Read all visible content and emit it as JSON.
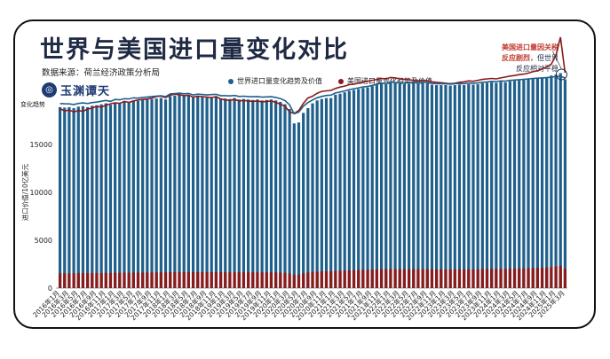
{
  "title": "世界与美国进口量变化对比",
  "source": "数据来源：荷兰经济政策分析局",
  "logo": {
    "text": "玉渊谭天"
  },
  "annotation": {
    "line1": "美国进口量因关税",
    "line2_red": "反应剧烈",
    "line2_rest": "，但世界",
    "line3": "反应相对平稳"
  },
  "legend": [
    {
      "label": "世界进口量变化趋势及价值",
      "color": "#1f5f8b"
    },
    {
      "label": "美国进口量变化趋势及价值",
      "color": "#8b1a1a"
    }
  ],
  "chart_data": {
    "type": "bar",
    "ylabel": "进口价值/10亿美元",
    "trend_label": "变化趋势",
    "yticks": [
      0,
      5000,
      10000,
      15000
    ],
    "ylim": [
      0,
      20000
    ],
    "x": [
      "2016年1月",
      "2016年2月",
      "2016年3月",
      "2016年4月",
      "2016年5月",
      "2016年6月",
      "2016年7月",
      "2016年8月",
      "2016年9月",
      "2016年10月",
      "2016年11月",
      "2016年12月",
      "2017年1月",
      "2017年2月",
      "2017年3月",
      "2017年4月",
      "2017年5月",
      "2017年6月",
      "2017年7月",
      "2017年8月",
      "2017年9月",
      "2017年10月",
      "2017年11月",
      "2017年12月",
      "2018年1月",
      "2018年2月",
      "2018年3月",
      "2018年4月",
      "2018年5月",
      "2018年6月",
      "2018年7月",
      "2018年8月",
      "2018年9月",
      "2018年10月",
      "2018年11月",
      "2018年12月",
      "2019年1月",
      "2019年2月",
      "2019年3月",
      "2019年4月",
      "2019年5月",
      "2019年6月",
      "2019年7月",
      "2019年8月",
      "2019年9月",
      "2019年10月",
      "2019年11月",
      "2019年12月",
      "2020年1月",
      "2020年2月",
      "2020年3月",
      "2020年4月",
      "2020年5月",
      "2020年6月",
      "2020年7月",
      "2020年8月",
      "2020年9月",
      "2020年10月",
      "2020年11月",
      "2020年12月",
      "2021年1月",
      "2021年2月",
      "2021年3月",
      "2021年4月",
      "2021年5月",
      "2021年6月",
      "2021年7月",
      "2021年8月",
      "2021年9月",
      "2021年10月",
      "2021年11月",
      "2021年12月",
      "2022年1月",
      "2022年2月",
      "2022年3月",
      "2022年4月",
      "2022年5月",
      "2022年6月",
      "2022年7月",
      "2022年8月",
      "2022年9月",
      "2022年10月",
      "2022年11月",
      "2022年12月",
      "2023年1月",
      "2023年2月",
      "2023年3月",
      "2023年4月",
      "2023年5月",
      "2023年6月",
      "2023年7月",
      "2023年8月",
      "2023年9月",
      "2023年10月",
      "2023年11月",
      "2023年12月",
      "2024年1月",
      "2024年2月",
      "2024年3月",
      "2024年4月",
      "2024年5月",
      "2024年6月",
      "2024年7月",
      "2024年8月",
      "2024年9月",
      "2024年10月",
      "2024年11月",
      "2024年12月",
      "2025年1月",
      "2025年2月",
      "2025年3月"
    ],
    "series": [
      {
        "name": "世界进口量变化趋势及价值",
        "color": "#1f5f8b",
        "values": [
          18900,
          18850,
          18900,
          18800,
          18950,
          19000,
          18900,
          19050,
          19100,
          19200,
          19300,
          19150,
          19400,
          19350,
          19500,
          19450,
          19600,
          19550,
          19650,
          19700,
          19750,
          19800,
          19850,
          19700,
          20050,
          20100,
          20150,
          20050,
          20100,
          19900,
          20000,
          19950,
          19900,
          19950,
          20000,
          19800,
          19800,
          19750,
          19850,
          19700,
          19750,
          19700,
          19650,
          19700,
          19600,
          19650,
          19700,
          19600,
          19450,
          19200,
          18700,
          17200,
          17300,
          18300,
          18800,
          19300,
          19600,
          19750,
          19850,
          19850,
          20200,
          20300,
          20450,
          20600,
          20700,
          20800,
          20900,
          20950,
          21100,
          21200,
          21350,
          21300,
          21500,
          21400,
          21350,
          21300,
          21350,
          21450,
          21400,
          21450,
          21350,
          21250,
          21200,
          21200,
          21200,
          21150,
          21200,
          21250,
          21200,
          21300,
          21250,
          21300,
          21400,
          21450,
          21500,
          21450,
          21550,
          21500,
          21600,
          21650,
          21700,
          21750,
          21800,
          21900,
          21950,
          22000,
          22050,
          22200,
          22300,
          22450,
          21800
        ]
      },
      {
        "name": "美国进口量变化趋势及价值",
        "color": "#8b1a1a",
        "values": [
          1550,
          1540,
          1550,
          1545,
          1560,
          1565,
          1560,
          1570,
          1575,
          1580,
          1590,
          1580,
          1600,
          1595,
          1610,
          1605,
          1620,
          1615,
          1625,
          1630,
          1635,
          1640,
          1645,
          1640,
          1665,
          1670,
          1675,
          1670,
          1680,
          1665,
          1675,
          1670,
          1665,
          1670,
          1675,
          1660,
          1655,
          1650,
          1660,
          1650,
          1655,
          1650,
          1645,
          1650,
          1640,
          1645,
          1650,
          1640,
          1620,
          1590,
          1520,
          1380,
          1420,
          1560,
          1640,
          1690,
          1720,
          1740,
          1760,
          1770,
          1800,
          1810,
          1830,
          1850,
          1870,
          1880,
          1900,
          1910,
          1930,
          1950,
          1970,
          1960,
          1990,
          1980,
          1970,
          1960,
          1970,
          1980,
          1975,
          1980,
          1970,
          1960,
          1950,
          1955,
          1950,
          1945,
          1950,
          1960,
          1955,
          1965,
          1960,
          1970,
          1980,
          1990,
          2000,
          1995,
          2010,
          2005,
          2020,
          2030,
          2045,
          2060,
          2075,
          2090,
          2110,
          2130,
          2150,
          2200,
          2260,
          2330,
          2000
        ]
      }
    ],
    "world_trend": [
      19280,
      19250,
      19240,
      19180,
      19290,
      19340,
      19280,
      19380,
      19430,
      19520,
      19600,
      19500,
      19700,
      19670,
      19780,
      19760,
      19870,
      19840,
      19920,
      19960,
      20010,
      20060,
      20090,
      20000,
      20290,
      20320,
      20360,
      20300,
      20330,
      20180,
      20260,
      20220,
      20180,
      20210,
      20240,
      20100,
      20100,
      20070,
      20120,
      20020,
      20050,
      20010,
      19980,
      20010,
      19940,
      19970,
      19990,
      19920,
      19800,
      19580,
      19150,
      18200,
      18380,
      19000,
      19380,
      19650,
      19880,
      20020,
      20120,
      20160,
      20380,
      20480,
      20590,
      20730,
      20820,
      20920,
      21010,
      21060,
      21180,
      21280,
      21400,
      21380,
      21550,
      21490,
      21460,
      21420,
      21450,
      21520,
      21500,
      21530,
      21460,
      21380,
      21340,
      21340,
      21330,
      21300,
      21340,
      21370,
      21350,
      21420,
      21400,
      21430,
      21500,
      21540,
      21590,
      21570,
      21640,
      21620,
      21690,
      21730,
      21770,
      21810,
      21840,
      21900,
      21930,
      21950,
      21980,
      22040,
      22080,
      22120,
      21950
    ],
    "us_trend": [
      18750,
      18500,
      18600,
      18400,
      18550,
      18450,
      18700,
      18800,
      19000,
      18900,
      19100,
      19250,
      19350,
      19300,
      19500,
      19400,
      19550,
      19650,
      19700,
      19750,
      19850,
      20000,
      20050,
      19900,
      20150,
      20250,
      20200,
      20100,
      20150,
      19950,
      20050,
      20000,
      19950,
      19900,
      20000,
      19750,
      19650,
      19600,
      19700,
      19550,
      19600,
      19550,
      19500,
      19550,
      19450,
      19500,
      19550,
      19400,
      19200,
      19000,
      18400,
      18250,
      18550,
      19300,
      19850,
      20050,
      20350,
      20550,
      20600,
      20650,
      20850,
      21000,
      21100,
      21250,
      21300,
      21400,
      21550,
      21600,
      21700,
      21800,
      21900,
      21850,
      22000,
      21950,
      21850,
      21800,
      21750,
      21700,
      21650,
      21700,
      21650,
      21550,
      21500,
      21450,
      21400,
      21350,
      21400,
      21500,
      21550,
      21650,
      21600,
      21700,
      21800,
      21850,
      21900,
      21850,
      21950,
      22050,
      22150,
      22200,
      22300,
      22350,
      22450,
      22600,
      22700,
      22900,
      23100,
      23400,
      24300,
      26200,
      22500
    ]
  }
}
